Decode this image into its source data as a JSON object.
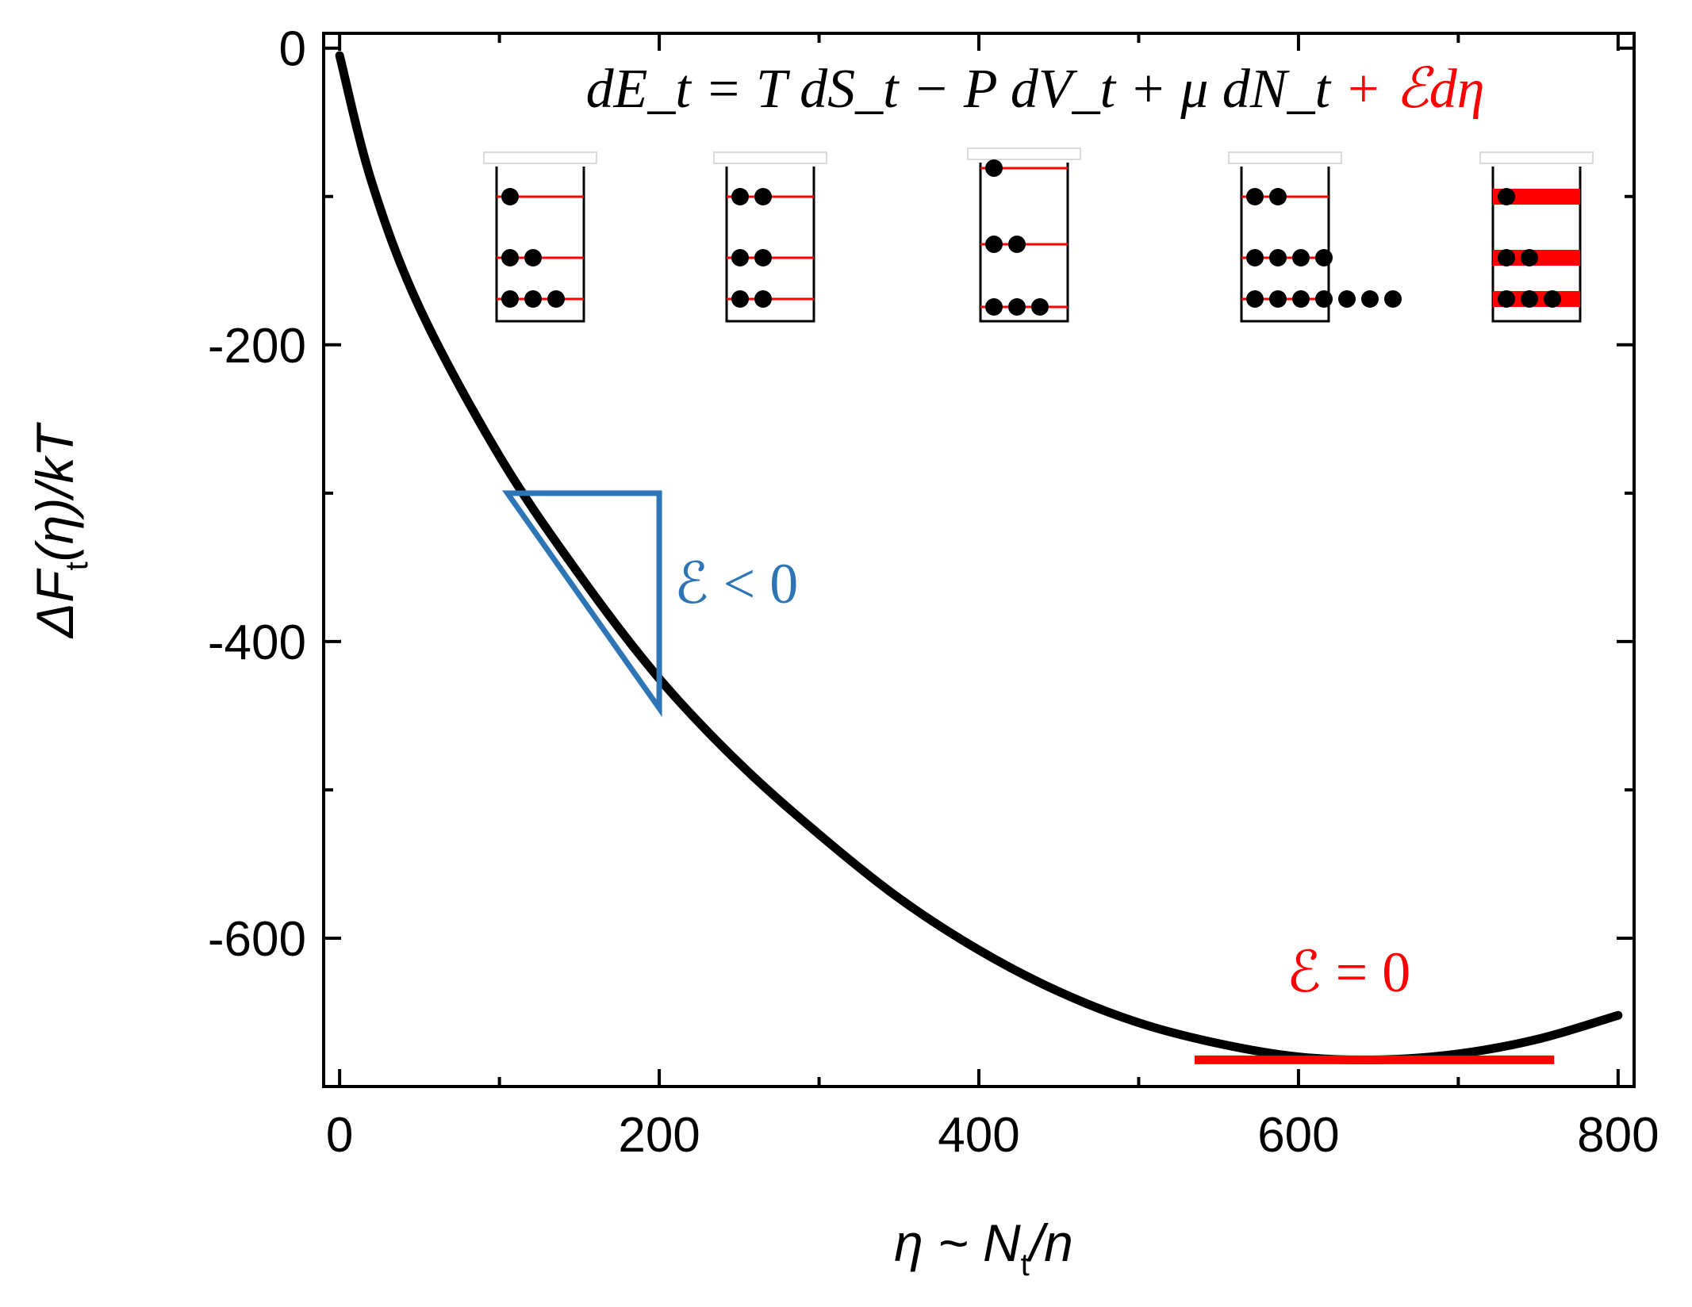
{
  "chart_data": {
    "type": "line",
    "title": "",
    "xlabel": {
      "pre": "η ~ N",
      "sub": "t",
      "post": "/n"
    },
    "ylabel": {
      "pre": "ΔF",
      "sub": "t",
      "post": "(η)/kT"
    },
    "xlim": [
      -10,
      810
    ],
    "ylim": [
      -700,
      10
    ],
    "xticks": [
      0,
      200,
      400,
      600,
      800
    ],
    "xticks_minor": [
      100,
      300,
      500,
      700
    ],
    "yticks": [
      0,
      -200,
      -400,
      -600
    ],
    "yticks_minor": [
      -100,
      -300,
      -500
    ],
    "grid": false,
    "series": [
      {
        "color": "#000000",
        "x": [
          0,
          20,
          50,
          100,
          150,
          200,
          250,
          300,
          350,
          400,
          450,
          500,
          550,
          600,
          650,
          700,
          750,
          800
        ],
        "y": [
          -5,
          -90,
          -175,
          -275,
          -355,
          -425,
          -482,
          -530,
          -573,
          -608,
          -636,
          -657,
          -671,
          -680,
          -682,
          -678,
          -668,
          -652
        ]
      }
    ],
    "annotations": {
      "equation": {
        "black": "dE_t = T dS_t − P dV_t + μ dN_t",
        "red": "+ ℰdη",
        "black_color": "#000000",
        "red_color": "#ff0000"
      },
      "tangent_negative": {
        "label": "ℰ < 0",
        "color": "#2e75b6",
        "vertices": [
          [
            105,
            -300
          ],
          [
            200,
            -300
          ],
          [
            200,
            -445
          ]
        ]
      },
      "tangent_zero": {
        "label": "ℰ = 0",
        "color": "#ff0000",
        "x_range": [
          535,
          760
        ],
        "y": -682
      },
      "boxes": [
        {
          "lines": [
            {
              "dots": 1,
              "width": "thin"
            },
            {
              "dots": 2,
              "width": "thin"
            },
            {
              "dots": 3,
              "width": "thin"
            }
          ]
        },
        {
          "lines": [
            {
              "dots": 2,
              "width": "thin"
            },
            {
              "dots": 2,
              "width": "thin"
            },
            {
              "dots": 2,
              "width": "thin"
            }
          ]
        },
        {
          "lines": [
            {
              "dots": 1,
              "width": "thin"
            },
            {
              "dots": 2,
              "width": "thin"
            },
            {
              "dots": 3,
              "width": "thin"
            }
          ]
        },
        {
          "lines": [
            {
              "dots": 2,
              "width": "thin"
            },
            {
              "dots": 4,
              "width": "thin"
            },
            {
              "dots": 7,
              "width": "thin"
            }
          ]
        },
        {
          "lines": [
            {
              "dots": 1,
              "width": "thick"
            },
            {
              "dots": 2,
              "width": "thick"
            },
            {
              "dots": 3,
              "width": "thick"
            }
          ]
        }
      ]
    }
  }
}
